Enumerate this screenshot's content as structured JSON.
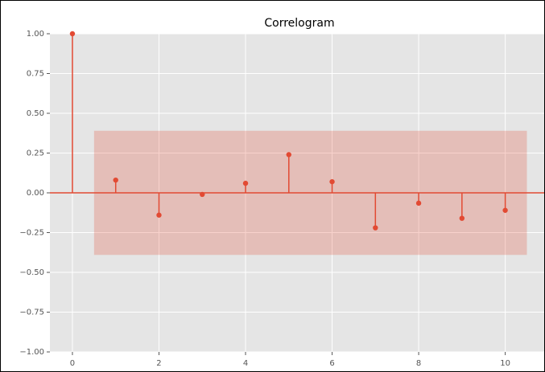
{
  "chart_data": {
    "type": "stem",
    "title": "Correlogram",
    "x": [
      0,
      1,
      2,
      3,
      4,
      5,
      6,
      7,
      8,
      9,
      10
    ],
    "values": [
      1.0,
      0.08,
      -0.14,
      -0.01,
      0.06,
      0.24,
      0.07,
      -0.22,
      -0.065,
      -0.16,
      -0.11
    ],
    "color": "#e24a33",
    "confint": {
      "x": [
        0.5,
        10.5
      ],
      "upper": 0.39,
      "lower": -0.39,
      "color": "#e24a33"
    },
    "xlim": [
      -0.52,
      10.9
    ],
    "ylim": [
      -1.0,
      1.0
    ],
    "xticks": [
      0,
      2,
      4,
      6,
      8,
      10
    ],
    "yticks": [
      {
        "value": -1.0,
        "label": "−1.00"
      },
      {
        "value": -0.75,
        "label": "−0.75"
      },
      {
        "value": -0.5,
        "label": "−0.50"
      },
      {
        "value": -0.25,
        "label": "−0.25"
      },
      {
        "value": 0,
        "label": "0.00"
      },
      {
        "value": 0.25,
        "label": "0.25"
      },
      {
        "value": 0.5,
        "label": "0.50"
      },
      {
        "value": 0.75,
        "label": "0.75"
      },
      {
        "value": 1.0,
        "label": "1.00"
      }
    ],
    "grid": true
  }
}
